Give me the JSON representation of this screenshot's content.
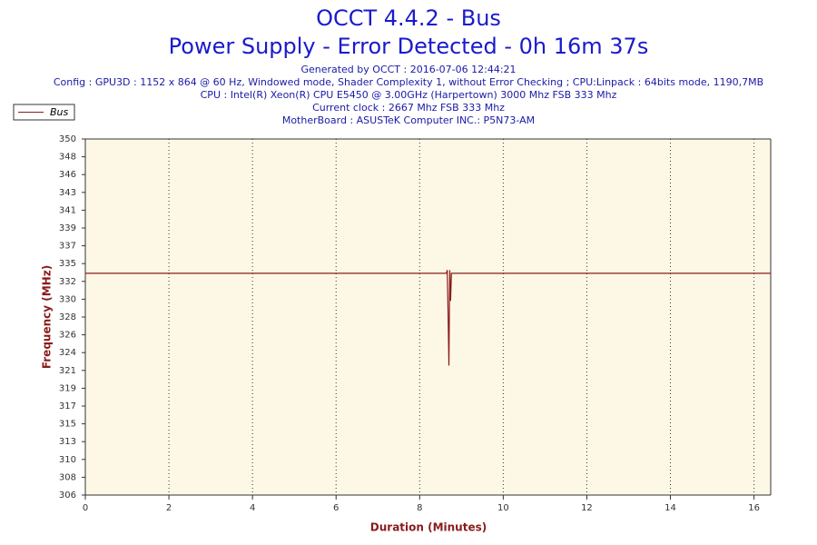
{
  "chart_data": {
    "type": "line",
    "title": "OCCT 4.4.2 - Bus",
    "subtitle": "Power Supply - Error Detected - 0h 16m 37s",
    "info": [
      "Generated by OCCT : 2016-07-06 12:44:21",
      "Config : GPU3D : 1152 x 864 @ 60 Hz, Windowed mode, Shader Complexity 1, without Error Checking ; CPU:Linpack : 64bits mode, 1190,7MB",
      "CPU : Intel(R) Xeon(R) CPU E5450 @ 3.00GHz (Harpertown) 3000 Mhz FSB 333 Mhz",
      "Current clock : 2667 Mhz FSB 333 Mhz",
      "MotherBoard : ASUSTeK Computer INC.: P5N73-AM"
    ],
    "x_label": "Duration (Minutes)",
    "y_label": "Frequency (MHz)",
    "series": [
      {
        "name": "Bus",
        "color": "#8b1a1a",
        "x": [
          0,
          8.64,
          8.66,
          8.68,
          8.7,
          8.72,
          8.74,
          8.76,
          16.4
        ],
        "values": [
          333.4,
          333.4,
          333.8,
          328.5,
          322.0,
          333.8,
          330.0,
          333.4,
          333.4
        ]
      }
    ],
    "xlim": [
      0,
      16.4
    ],
    "xticks": [
      0,
      2,
      4,
      6,
      8,
      10,
      12,
      14,
      16
    ],
    "ylim": [
      306,
      350
    ],
    "yticks": [
      306,
      {
        "value": 308.2,
        "label": "308"
      },
      {
        "value": 310.4,
        "label": "310"
      },
      {
        "value": 312.6,
        "label": "313"
      },
      {
        "value": 314.8,
        "label": "315"
      },
      317,
      {
        "value": 319.2,
        "label": "319"
      },
      {
        "value": 321.4,
        "label": "321"
      },
      {
        "value": 323.6,
        "label": "324"
      },
      {
        "value": 325.8,
        "label": "326"
      },
      328,
      {
        "value": 330.2,
        "label": "330"
      },
      {
        "value": 332.4,
        "label": "332"
      },
      {
        "value": 334.6,
        "label": "335"
      },
      {
        "value": 336.8,
        "label": "337"
      },
      339,
      {
        "value": 341.2,
        "label": "341"
      },
      {
        "value": 343.4,
        "label": "343"
      },
      {
        "value": 345.6,
        "label": "346"
      },
      {
        "value": 347.8,
        "label": "348"
      },
      350
    ],
    "grid": true,
    "legend": "top-left"
  }
}
